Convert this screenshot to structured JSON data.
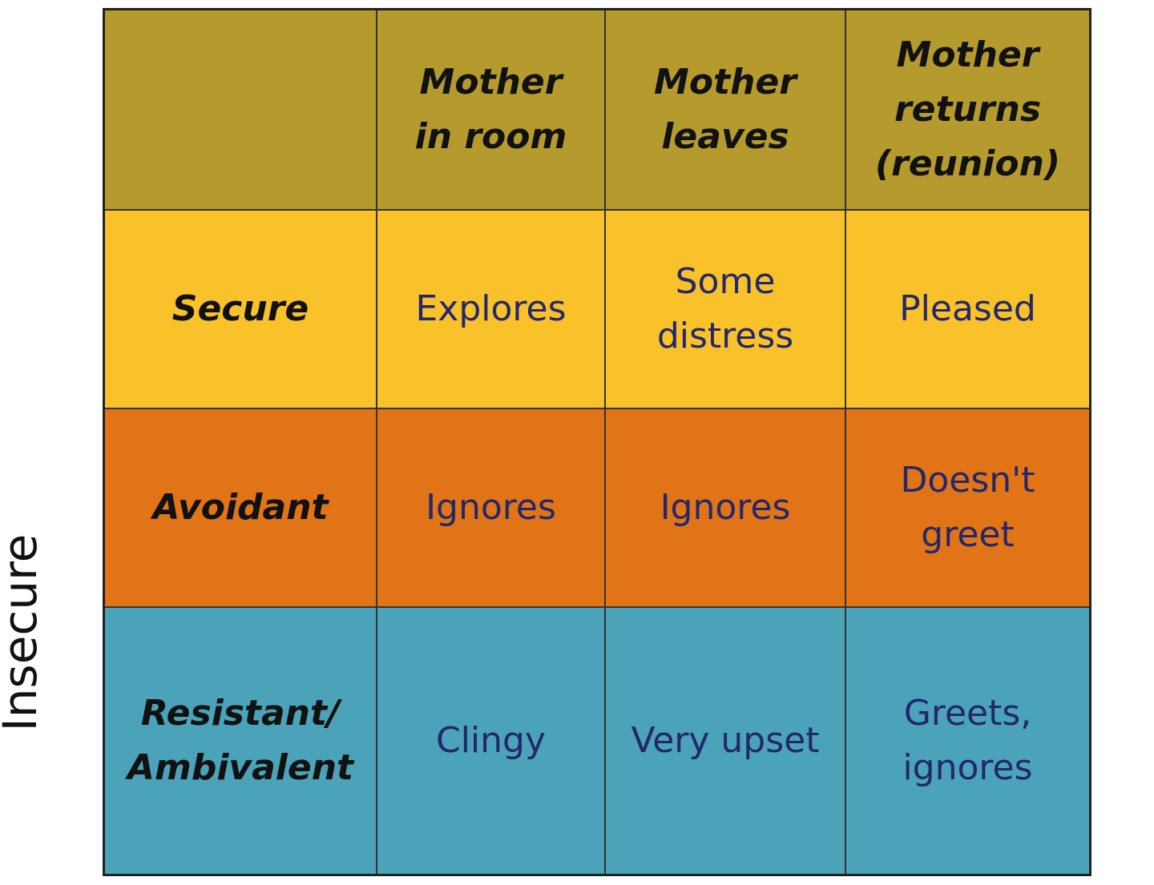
{
  "side_label": "Insecure",
  "table": {
    "header": [
      [],
      [
        "Mother",
        "in room"
      ],
      [
        "Mother",
        "leaves"
      ],
      [
        "Mother",
        "returns",
        "(reunion)"
      ]
    ],
    "rows": [
      [
        [
          "Secure"
        ],
        [
          "Explores"
        ],
        [
          "Some",
          "distress"
        ],
        [
          "Pleased"
        ]
      ],
      [
        [
          "Avoidant"
        ],
        [
          "Ignores"
        ],
        [
          "Ignores"
        ],
        [
          "Doesn't",
          "greet"
        ]
      ],
      [
        [
          "Resistant/",
          "Ambivalent"
        ],
        [
          "Clingy"
        ],
        [
          "Very upset"
        ],
        [
          "Greets,",
          "ignores"
        ]
      ]
    ]
  }
}
